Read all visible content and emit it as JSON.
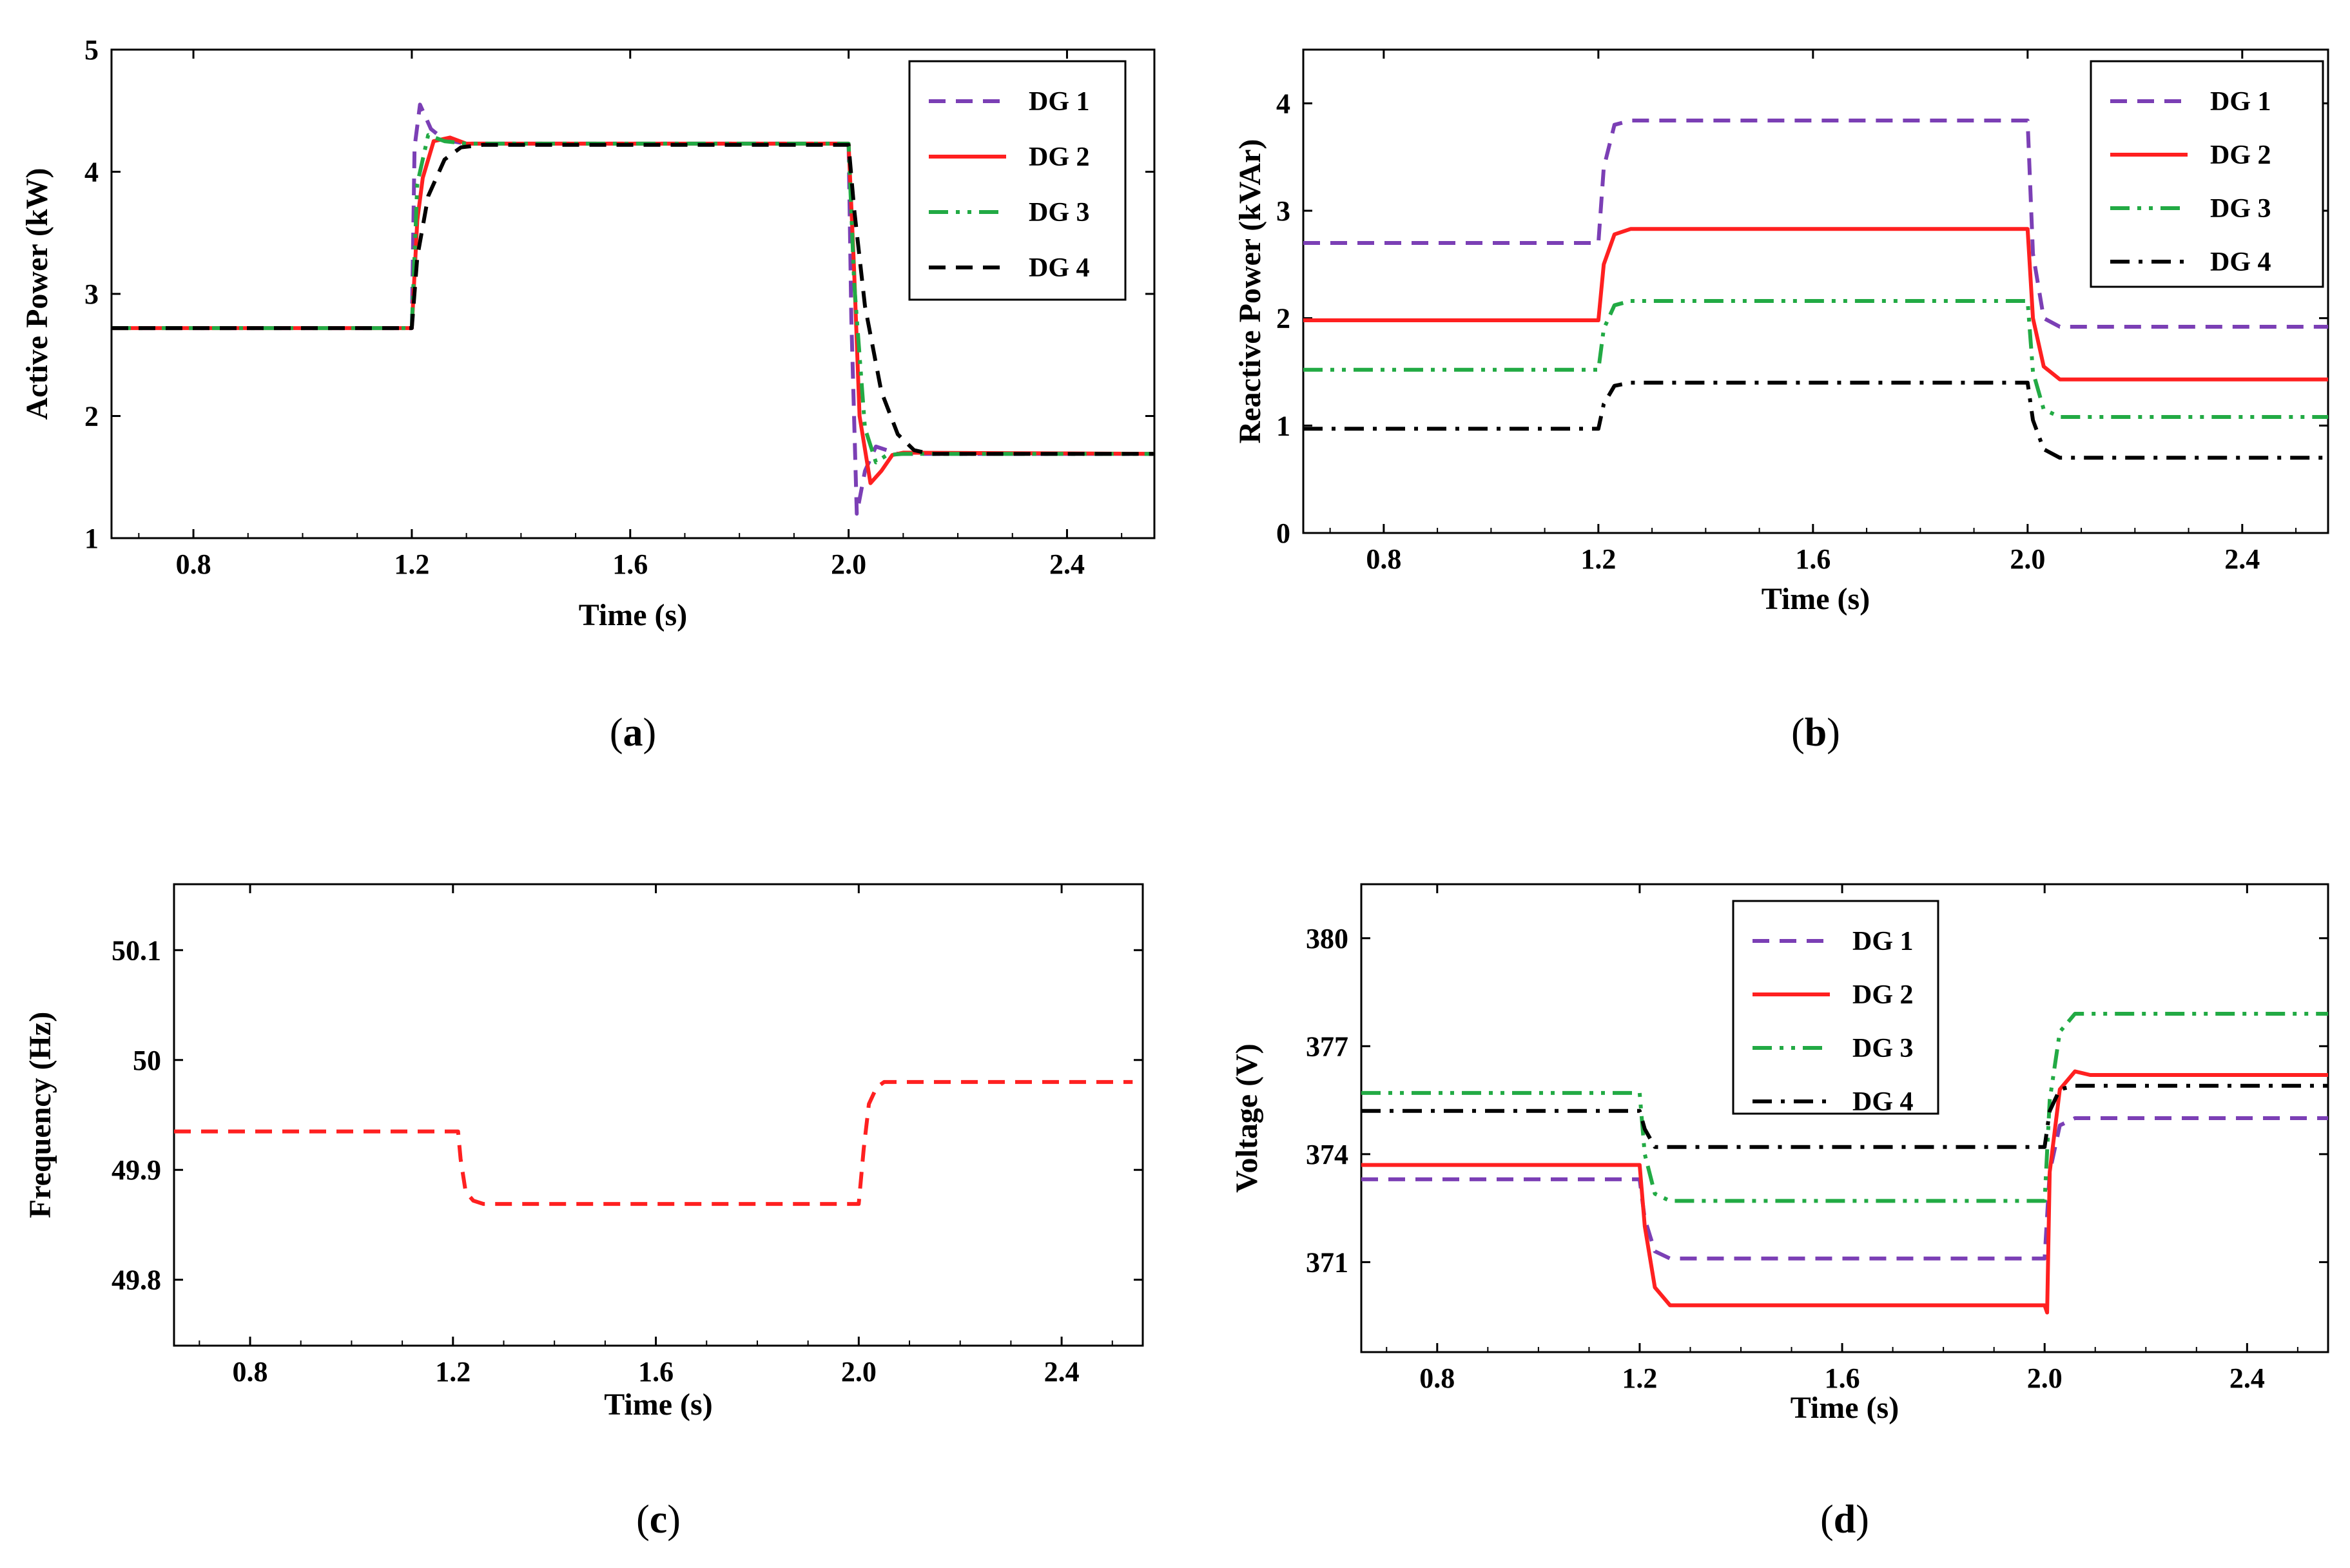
{
  "chart_data": [
    {
      "type": "line",
      "panel_label": "(a)",
      "panel_letter": "a",
      "title": "",
      "xlabel": "Time (s)",
      "ylabel": "Active Power (kW)",
      "xlim": [
        0.65,
        2.56
      ],
      "ylim": [
        1,
        5
      ],
      "xticks": [
        0.8,
        1.2,
        1.6,
        2.0,
        2.4
      ],
      "xtick_labels": [
        "0.8",
        "1.2",
        "1.6",
        "2.0",
        "2.4"
      ],
      "yticks": [
        1,
        2,
        3,
        4,
        5
      ],
      "ytick_labels": [
        "1",
        "2",
        "3",
        "4",
        "5"
      ],
      "legend": "top-right",
      "series": [
        {
          "name": "DG 1",
          "color": "#7b3fb5",
          "dash": "dashed",
          "x": [
            0.65,
            1.2,
            1.205,
            1.215,
            1.235,
            1.26,
            1.3,
            2.0,
            2.005,
            2.015,
            2.03,
            2.05,
            2.09,
            2.56
          ],
          "y": [
            2.72,
            2.72,
            4.2,
            4.55,
            4.35,
            4.26,
            4.23,
            4.23,
            2.8,
            1.2,
            1.55,
            1.75,
            1.69,
            1.69
          ]
        },
        {
          "name": "DG 2",
          "color": "#ff2020",
          "dash": "solid",
          "x": [
            0.65,
            1.2,
            1.21,
            1.22,
            1.24,
            1.27,
            1.3,
            2.0,
            2.01,
            2.02,
            2.04,
            2.06,
            2.08,
            2.1,
            2.56
          ],
          "y": [
            2.72,
            2.72,
            3.6,
            3.95,
            4.25,
            4.28,
            4.23,
            4.23,
            3.2,
            2.0,
            1.45,
            1.55,
            1.68,
            1.7,
            1.69
          ]
        },
        {
          "name": "DG 3",
          "color": "#22aa44",
          "dash": "dashdotdot",
          "x": [
            0.65,
            1.2,
            1.21,
            1.23,
            1.26,
            1.3,
            2.0,
            2.01,
            2.03,
            2.05,
            2.07,
            2.1,
            2.56
          ],
          "y": [
            2.72,
            2.72,
            3.9,
            4.3,
            4.25,
            4.23,
            4.23,
            3.1,
            1.9,
            1.62,
            1.68,
            1.69,
            1.69
          ]
        },
        {
          "name": "DG 4",
          "color": "#000000",
          "dash": "dashed",
          "x": [
            0.65,
            1.2,
            1.21,
            1.23,
            1.26,
            1.29,
            1.33,
            2.0,
            2.01,
            2.03,
            2.06,
            2.09,
            2.12,
            2.15,
            2.56
          ],
          "y": [
            2.72,
            2.72,
            3.3,
            3.8,
            4.1,
            4.2,
            4.22,
            4.22,
            3.7,
            2.9,
            2.2,
            1.85,
            1.72,
            1.69,
            1.69
          ]
        }
      ]
    },
    {
      "type": "line",
      "panel_label": "(b)",
      "panel_letter": "b",
      "title": "",
      "xlabel": "Time (s)",
      "ylabel": "Reactive Power (kVAr)",
      "xlim": [
        0.65,
        2.56
      ],
      "ylim": [
        0,
        4.5
      ],
      "xticks": [
        0.8,
        1.2,
        1.6,
        2.0,
        2.4
      ],
      "xtick_labels": [
        "0.8",
        "1.2",
        "1.6",
        "2.0",
        "2.4"
      ],
      "yticks": [
        0,
        1,
        2,
        3,
        4
      ],
      "ytick_labels": [
        "0",
        "1",
        "2",
        "3",
        "4"
      ],
      "legend": "top-right",
      "series": [
        {
          "name": "DG 1",
          "color": "#7b3fb5",
          "dash": "dashed",
          "x": [
            0.65,
            1.2,
            1.21,
            1.23,
            1.26,
            2.0,
            2.01,
            2.03,
            2.06,
            2.56
          ],
          "y": [
            2.7,
            2.7,
            3.4,
            3.8,
            3.84,
            3.84,
            2.6,
            2.0,
            1.92,
            1.92
          ]
        },
        {
          "name": "DG 2",
          "color": "#ff2020",
          "dash": "solid",
          "x": [
            0.65,
            1.2,
            1.21,
            1.23,
            1.26,
            2.0,
            2.01,
            2.03,
            2.06,
            2.56
          ],
          "y": [
            1.98,
            1.98,
            2.5,
            2.78,
            2.83,
            2.83,
            2.0,
            1.55,
            1.43,
            1.43
          ]
        },
        {
          "name": "DG 3",
          "color": "#22aa44",
          "dash": "dashdotdot",
          "x": [
            0.65,
            1.2,
            1.21,
            1.23,
            1.26,
            2.0,
            2.01,
            2.03,
            2.06,
            2.56
          ],
          "y": [
            1.52,
            1.52,
            1.9,
            2.12,
            2.16,
            2.16,
            1.5,
            1.15,
            1.08,
            1.08
          ]
        },
        {
          "name": "DG 4",
          "color": "#000000",
          "dash": "dashdot",
          "x": [
            0.65,
            1.2,
            1.21,
            1.23,
            1.26,
            2.0,
            2.01,
            2.03,
            2.06,
            2.56
          ],
          "y": [
            0.97,
            0.97,
            1.2,
            1.37,
            1.4,
            1.4,
            1.05,
            0.78,
            0.7,
            0.7
          ]
        }
      ]
    },
    {
      "type": "line",
      "panel_label": "(c)",
      "panel_letter": "c",
      "title": "",
      "xlabel": "Time (s)",
      "ylabel": "Frequency (Hz)",
      "xlim": [
        0.65,
        2.56
      ],
      "ylim": [
        49.74,
        50.16
      ],
      "xticks": [
        0.8,
        1.2,
        1.6,
        2.0,
        2.4
      ],
      "xtick_labels": [
        "0.8",
        "1.2",
        "1.6",
        "2.0",
        "2.4"
      ],
      "yticks": [
        49.8,
        49.9,
        50,
        50.1
      ],
      "ytick_labels": [
        "49.8",
        "49.9",
        "50",
        "50.1"
      ],
      "legend": "none",
      "series": [
        {
          "name": "Frequency",
          "color": "#ff2020",
          "dash": "dashed",
          "x": [
            0.65,
            1.21,
            1.215,
            1.225,
            1.24,
            1.26,
            1.99,
            2.0,
            2.01,
            2.02,
            2.035,
            2.05,
            2.54
          ],
          "y": [
            49.935,
            49.935,
            49.91,
            49.88,
            49.872,
            49.869,
            49.869,
            49.869,
            49.92,
            49.96,
            49.975,
            49.98,
            49.98
          ]
        }
      ]
    },
    {
      "type": "line",
      "panel_label": "(d)",
      "panel_letter": "d",
      "title": "",
      "xlabel": "Time (s)",
      "ylabel": "Voltage (V)",
      "xlim": [
        0.65,
        2.56
      ],
      "ylim": [
        368.5,
        381.5
      ],
      "xticks": [
        0.8,
        1.2,
        1.6,
        2.0,
        2.4
      ],
      "xtick_labels": [
        "0.8",
        "1.2",
        "1.6",
        "2.0",
        "2.4"
      ],
      "yticks": [
        371,
        374,
        377,
        380
      ],
      "ytick_labels": [
        "371",
        "374",
        "377",
        "380"
      ],
      "legend": "top-left",
      "series": [
        {
          "name": "DG 1",
          "color": "#7b3fb5",
          "dash": "dashed",
          "x": [
            0.65,
            1.2,
            1.21,
            1.23,
            1.26,
            2.0,
            2.01,
            2.03,
            2.06,
            2.56
          ],
          "y": [
            373.3,
            373.3,
            372.2,
            371.3,
            371.1,
            371.1,
            373.5,
            374.8,
            375.0,
            375.0
          ]
        },
        {
          "name": "DG 2",
          "color": "#ff2020",
          "dash": "solid",
          "x": [
            0.65,
            1.2,
            1.21,
            1.23,
            1.26,
            2.0,
            2.005,
            2.01,
            2.03,
            2.06,
            2.09,
            2.56
          ],
          "y": [
            373.7,
            373.7,
            372.0,
            370.3,
            369.8,
            369.8,
            369.6,
            373.5,
            375.8,
            376.3,
            376.2,
            376.2
          ]
        },
        {
          "name": "DG 3",
          "color": "#22aa44",
          "dash": "dashdotdot",
          "x": [
            0.65,
            1.2,
            1.21,
            1.23,
            1.26,
            2.0,
            2.01,
            2.03,
            2.06,
            2.56
          ],
          "y": [
            375.7,
            375.7,
            374.0,
            372.9,
            372.7,
            372.7,
            375.5,
            377.4,
            377.9,
            377.9
          ]
        },
        {
          "name": "DG 4",
          "color": "#000000",
          "dash": "dashdot",
          "x": [
            0.65,
            1.2,
            1.21,
            1.23,
            1.26,
            2.0,
            2.01,
            2.03,
            2.06,
            2.56
          ],
          "y": [
            375.2,
            375.2,
            374.7,
            374.2,
            374.2,
            374.2,
            375.2,
            375.8,
            375.9,
            375.9
          ]
        }
      ]
    }
  ]
}
